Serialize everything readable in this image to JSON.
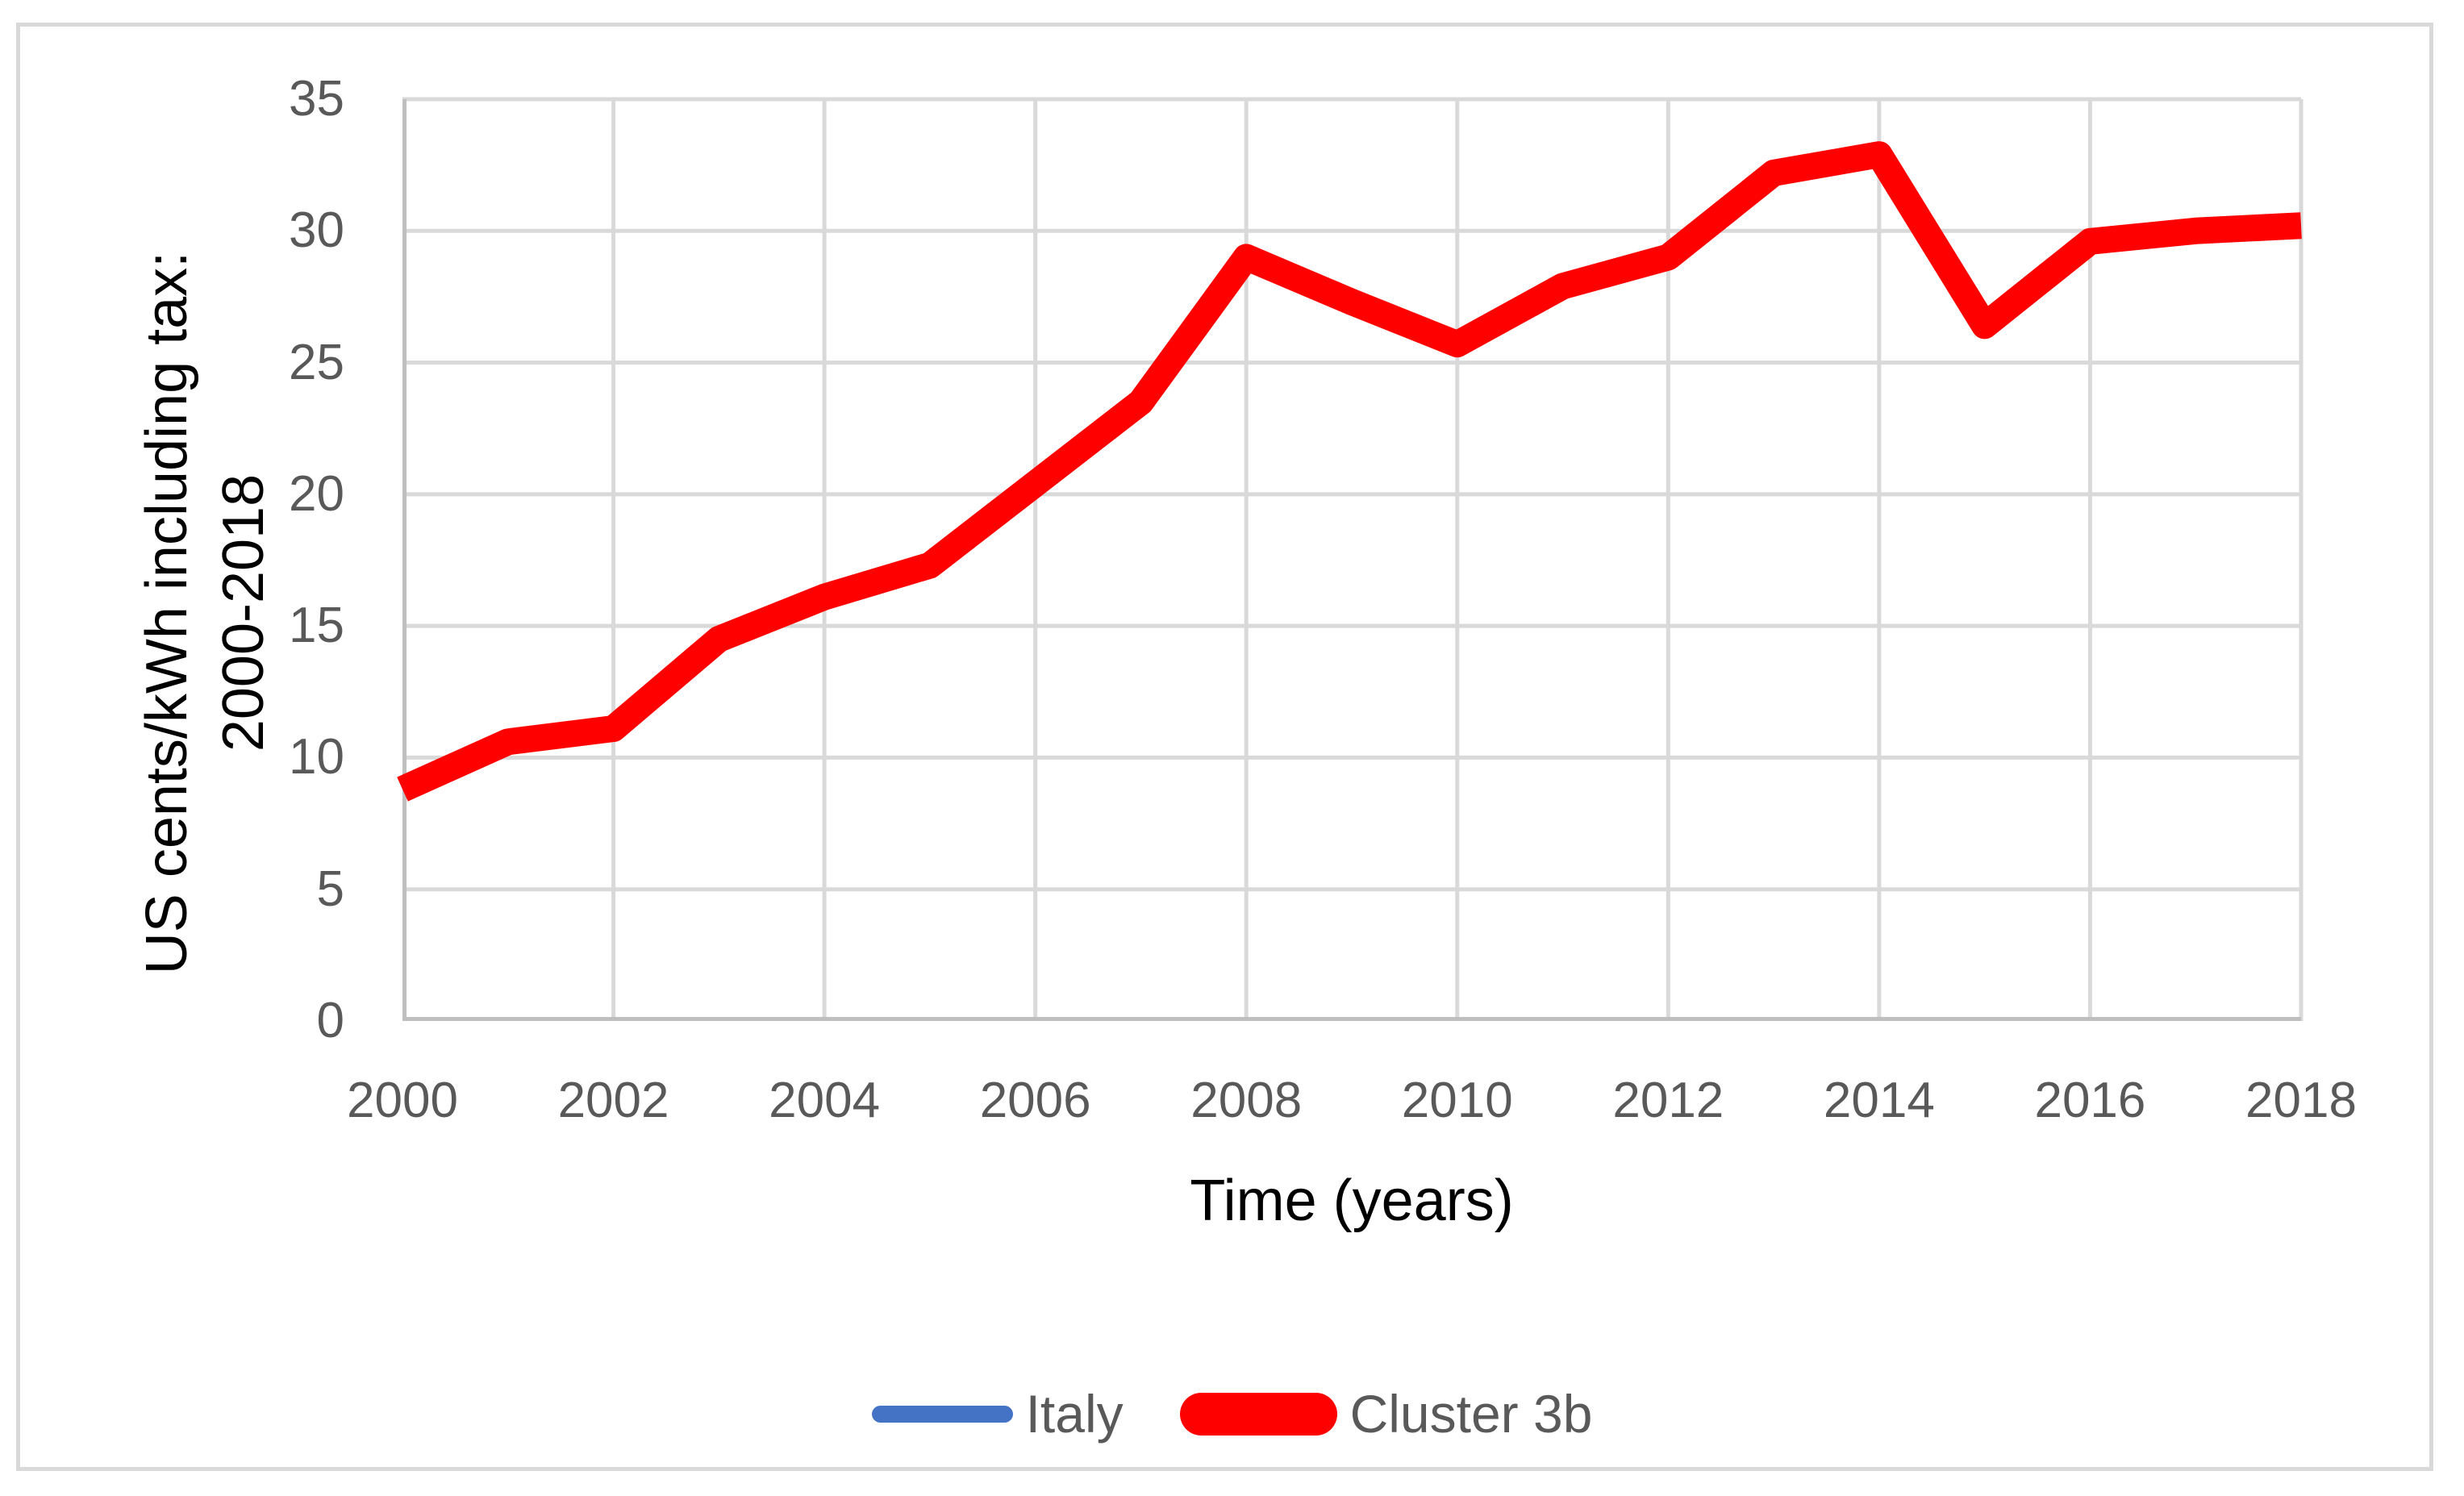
{
  "chart_data": {
    "type": "line",
    "title": "",
    "xlabel": "Time (years)",
    "ylabel_line1": "US cents/kWh  including tax:",
    "ylabel_line2": "2000-2018",
    "xlim": [
      2000,
      2018
    ],
    "ylim": [
      0,
      35
    ],
    "grid": true,
    "legend_position": "bottom",
    "x": [
      2000,
      2001,
      2002,
      2003,
      2004,
      2005,
      2006,
      2007,
      2008,
      2009,
      2010,
      2011,
      2012,
      2013,
      2014,
      2015,
      2016,
      2017,
      2018
    ],
    "x_ticks": [
      2000,
      2002,
      2004,
      2006,
      2008,
      2010,
      2012,
      2014,
      2016,
      2018
    ],
    "y_ticks": [
      0,
      5,
      10,
      15,
      20,
      25,
      30,
      35
    ],
    "series": [
      {
        "name": "Italy",
        "color": "#4472C4",
        "width": 8,
        "values": [
          8.8,
          10.6,
          11.1,
          14.5,
          16.1,
          17.3,
          20.4,
          23.5,
          29.0,
          27.3,
          25.7,
          27.9,
          29.0,
          32.2,
          32.9,
          26.4,
          29.6,
          30.0,
          30.2
        ]
      },
      {
        "name": "Cluster 3b",
        "color": "#FF0000",
        "width": 33,
        "values": [
          8.8,
          10.6,
          11.1,
          14.5,
          16.1,
          17.3,
          20.4,
          23.5,
          29.0,
          27.3,
          25.7,
          27.9,
          29.0,
          32.2,
          32.9,
          26.4,
          29.6,
          30.0,
          30.2
        ]
      }
    ]
  },
  "legend": {
    "items": [
      {
        "label": "Italy",
        "color": "#4472C4",
        "swatch": "thin"
      },
      {
        "label": "Cluster 3b",
        "color": "#FF0000",
        "swatch": "thick"
      }
    ]
  },
  "colors": {
    "gridline": "#D9D9D9",
    "axis": "#BFBFBF",
    "tick_text": "#595959",
    "title_text": "#000000",
    "frame_border": "#D9D9D9",
    "background": "#FFFFFF"
  }
}
